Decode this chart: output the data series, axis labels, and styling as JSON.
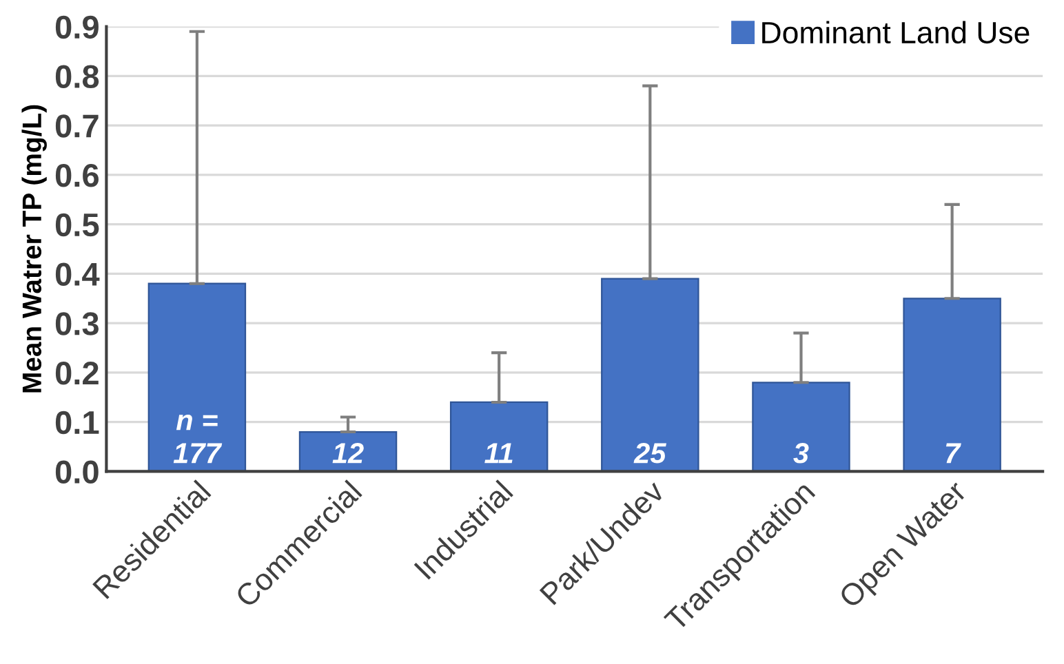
{
  "chart_data": {
    "type": "bar",
    "ylabel": "Mean Watrer TP (mg/L)",
    "categories": [
      "Residential",
      "Commercial",
      "Industrial",
      "Park/Undev",
      "Transportation",
      "Open Water"
    ],
    "series": [
      {
        "name": "Dominant Land Use",
        "color": "#4472c4",
        "values": [
          0.38,
          0.08,
          0.14,
          0.39,
          0.18,
          0.35
        ],
        "errors": [
          [
            0.38,
            0.89
          ],
          [
            0.08,
            0.11
          ],
          [
            0.14,
            0.24
          ],
          [
            0.39,
            0.78
          ],
          [
            0.18,
            0.28
          ],
          [
            0.35,
            0.54
          ]
        ]
      }
    ],
    "annotations": [
      {
        "text": "n =\n177",
        "x": "Residential",
        "y": 0
      },
      {
        "text": "12",
        "x": "Commercial",
        "y": 0
      },
      {
        "text": "11",
        "x": "Industrial",
        "y": 0
      },
      {
        "text": "25",
        "x": "Park/Undev",
        "y": 0
      },
      {
        "text": "3",
        "x": "Transportation",
        "y": 0
      },
      {
        "text": "7",
        "x": "Open Water",
        "y": 0
      }
    ],
    "ylim": [
      0,
      0.9
    ],
    "yticks": [
      {
        "value": 0,
        "label": "0.0"
      },
      0.1,
      0.2,
      0.3,
      0.4,
      0.5,
      0.6,
      0.7,
      0.8,
      0.9
    ],
    "grid": "y",
    "legend": "top right"
  }
}
